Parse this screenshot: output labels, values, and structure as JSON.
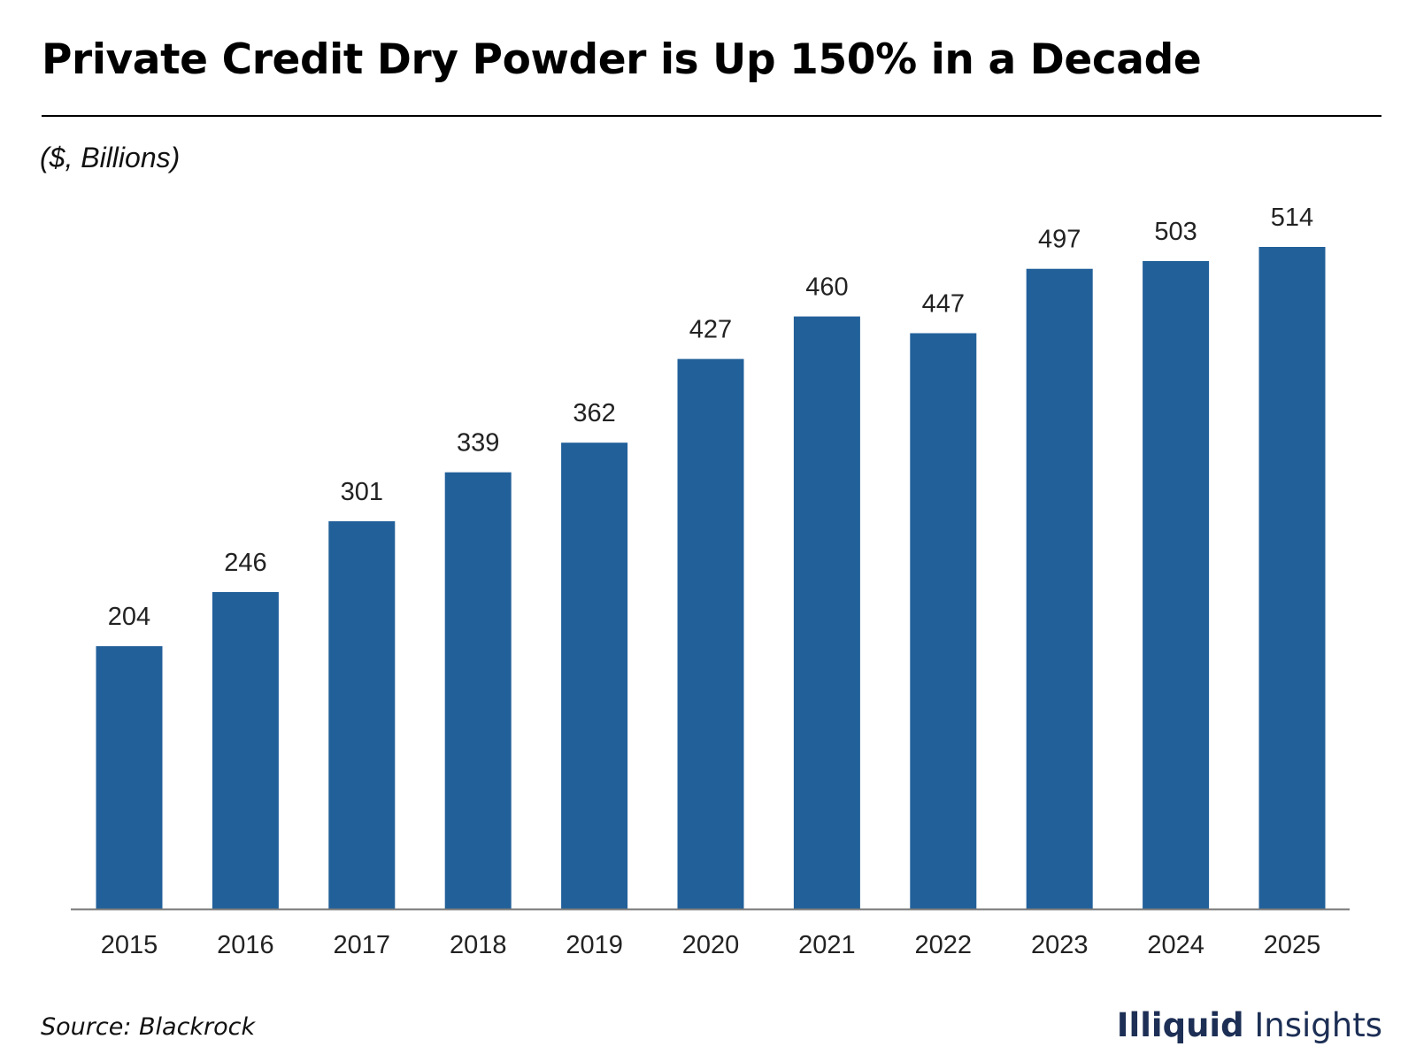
{
  "header": {
    "title": "Private Credit Dry Powder is Up 150% in a Decade",
    "unit_label": "($, Billions)"
  },
  "footer": {
    "source": "Source: Blackrock",
    "brand_part1": "Illiquid",
    "brand_part2": " Insights"
  },
  "colors": {
    "bar": "#22609a",
    "axis": "#777777",
    "brand": "#1d2f55"
  },
  "chart_data": {
    "type": "bar",
    "title": "Private Credit Dry Powder is Up 150% in a Decade",
    "ylabel": "($, Billions)",
    "xlabel": "",
    "categories": [
      "2015",
      "2016",
      "2017",
      "2018",
      "2019",
      "2020",
      "2021",
      "2022",
      "2023",
      "2024",
      "2025"
    ],
    "values": [
      204,
      246,
      301,
      339,
      362,
      427,
      460,
      447,
      497,
      503,
      514
    ],
    "ylim": [
      0,
      514
    ],
    "grid": false,
    "legend": "none",
    "data_labels": true
  }
}
